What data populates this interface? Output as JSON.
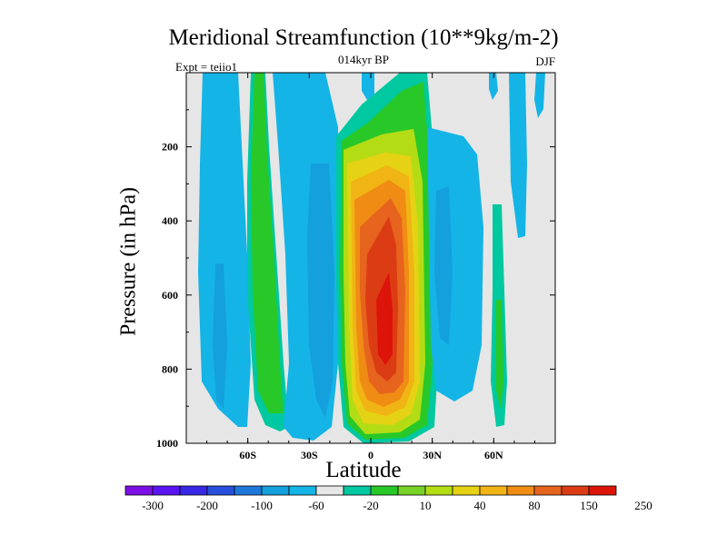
{
  "title": "Meridional Streamfunction (10**9kg/m-2)",
  "left_label": "Expt = teiio1",
  "center_label": "014kyr BP",
  "right_label": "DJF",
  "chart_data": {
    "type": "heatmap",
    "title": "Meridional Streamfunction (10**9kg/m-2)",
    "xlabel": "Latitude",
    "ylabel": "Pressure (in hPa)",
    "xlim": [
      -90,
      90
    ],
    "ylim": [
      1000,
      0
    ],
    "y_inverted": true,
    "xticks": [
      {
        "value": -60,
        "label": "60S"
      },
      {
        "value": -30,
        "label": "30S"
      },
      {
        "value": 0,
        "label": "0"
      },
      {
        "value": 30,
        "label": "30N"
      },
      {
        "value": 60,
        "label": "60N"
      }
    ],
    "yticks": [
      200,
      400,
      600,
      800,
      1000
    ],
    "background_color": "#e6e6e6",
    "colorbar": {
      "levels": [
        "-300",
        "-200",
        "-100",
        "-60",
        "-20",
        "10",
        "40",
        "80",
        "150",
        "250"
      ],
      "colors": [
        "#7d0fe6",
        "#5a14f0",
        "#3728e6",
        "#2850dc",
        "#1e78dc",
        "#14a0dc",
        "#14b4e6",
        "#e6e6e6",
        "#00c8a0",
        "#28c828",
        "#78d228",
        "#b4dc14",
        "#e6d214",
        "#f0b414",
        "#f08c14",
        "#e6641e",
        "#dc3c14",
        "#dc140a"
      ]
    },
    "features": [
      {
        "name": "equatorial-positive-cell",
        "lat_range": [
          -15,
          25
        ],
        "pressure_range": [
          20,
          990
        ],
        "max_approx": 250
      },
      {
        "name": "southern-midlat-positive-band",
        "lat_range": [
          -60,
          -40
        ],
        "pressure_range": [
          0,
          980
        ],
        "max_approx": 40
      },
      {
        "name": "southern-negative-band",
        "lat_range": [
          -80,
          -20
        ],
        "pressure_range": [
          0,
          960
        ],
        "min_approx": -60
      },
      {
        "name": "northern-negative-cell",
        "lat_range": [
          30,
          50
        ],
        "pressure_range": [
          80,
          880
        ],
        "min_approx": -60
      },
      {
        "name": "northern-positive-strip",
        "lat_range": [
          60,
          64
        ],
        "pressure_range": [
          300,
          940
        ],
        "max_approx": 40
      }
    ]
  }
}
